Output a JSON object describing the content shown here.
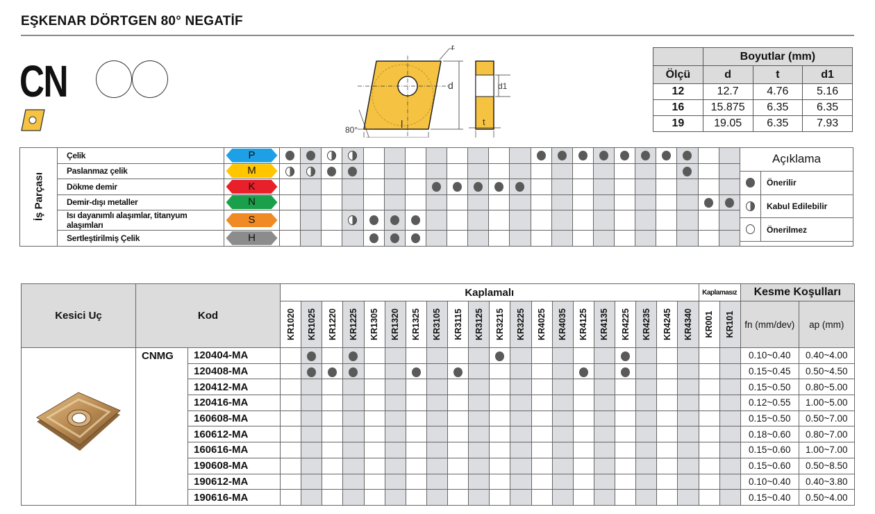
{
  "title": "EŞKENAR DÖRTGEN 80° NEGATİF",
  "shape_code": "CN",
  "diagram": {
    "r": "r",
    "d": "d",
    "d1": "d1",
    "l": "l",
    "t": "t",
    "angle": "80°"
  },
  "dimensions": {
    "group_header": "Boyutlar (mm)",
    "columns": [
      "Ölçü",
      "d",
      "t",
      "d1"
    ],
    "rows": [
      [
        "12",
        "12.7",
        "4.76",
        "5.16"
      ],
      [
        "16",
        "15.875",
        "6.35",
        "6.35"
      ],
      [
        "19",
        "19.05",
        "6.35",
        "7.93"
      ]
    ]
  },
  "workpiece": {
    "label": "İş Parçası",
    "materials": [
      {
        "name": "Çelik",
        "code": "P",
        "color": "#1ea0e6",
        "marks": [
          "full",
          "full",
          "half",
          "half",
          "",
          "",
          "",
          "",
          "",
          "",
          "",
          "",
          "full",
          "full",
          "full",
          "full",
          "full",
          "full",
          "full",
          "full",
          "",
          ""
        ]
      },
      {
        "name": "Paslanmaz çelik",
        "code": "M",
        "color": "#ffc600",
        "marks": [
          "half",
          "half",
          "full",
          "full",
          "",
          "",
          "",
          "",
          "",
          "",
          "",
          "",
          "",
          "",
          "",
          "",
          "",
          "",
          "",
          "full",
          "",
          ""
        ]
      },
      {
        "name": "Dökme demir",
        "code": "K",
        "color": "#e8202a",
        "marks": [
          "",
          "",
          "",
          "",
          "",
          "",
          "",
          "full",
          "full",
          "full",
          "full",
          "full",
          "",
          "",
          "",
          "",
          "",
          "",
          "",
          "",
          "",
          ""
        ]
      },
      {
        "name": "Demir-dışı metaller",
        "code": "N",
        "color": "#1aa04a",
        "marks": [
          "",
          "",
          "",
          "",
          "",
          "",
          "",
          "",
          "",
          "",
          "",
          "",
          "",
          "",
          "",
          "",
          "",
          "",
          "",
          "",
          "full",
          "full"
        ]
      },
      {
        "name": "Isı dayanımlı alaşımlar, titanyum alaşımları",
        "code": "S",
        "color": "#f08a24",
        "marks": [
          "",
          "",
          "",
          "half",
          "full",
          "full",
          "full",
          "",
          "",
          "",
          "",
          "",
          "",
          "",
          "",
          "",
          "",
          "",
          "",
          "",
          "",
          ""
        ]
      },
      {
        "name": "Sertleştirilmiş Çelik",
        "code": "H",
        "color": "#8c8c8c",
        "marks": [
          "",
          "",
          "",
          "",
          "full",
          "full",
          "full",
          "",
          "",
          "",
          "",
          "",
          "",
          "",
          "",
          "",
          "",
          "",
          "",
          "",
          "",
          ""
        ]
      }
    ],
    "legend": {
      "title": "Açıklama",
      "items": [
        {
          "symbol": "full",
          "label": "Önerilir"
        },
        {
          "symbol": "half",
          "label": "Kabul Edilebilir"
        },
        {
          "symbol": "empty",
          "label": "Önerilmez"
        }
      ]
    }
  },
  "inserts": {
    "col_insert": "Kesici Uç",
    "col_code": "Kod",
    "coated_header": "Kaplamalı",
    "uncoated_header": "Kaplamasız",
    "conditions_header": "Kesme Koşulları",
    "fn_header": "fn (mm/dev)",
    "ap_header": "ap (mm)",
    "grades": [
      "KR1020",
      "KR1025",
      "KR1220",
      "KR1225",
      "KR1305",
      "KR1320",
      "KR1325",
      "KR3105",
      "KR3115",
      "KR3125",
      "KR3215",
      "KR3225",
      "KR4025",
      "KR4035",
      "KR4125",
      "KR4135",
      "KR4225",
      "KR4235",
      "KR4245",
      "KR4340",
      "KR001",
      "KR101"
    ],
    "family": "CNMG",
    "rows": [
      {
        "code": "120404-MA",
        "fn": "0.10~0.40",
        "ap": "0.40~4.00",
        "available": [
          "KR1025",
          "KR1225",
          "KR3215",
          "KR4225"
        ]
      },
      {
        "code": "120408-MA",
        "fn": "0.15~0.45",
        "ap": "0.50~4.50",
        "available": [
          "KR1025",
          "KR1220",
          "KR1225",
          "KR1325",
          "KR3115",
          "KR4125",
          "KR4225"
        ]
      },
      {
        "code": "120412-MA",
        "fn": "0.15~0.50",
        "ap": "0.80~5.00",
        "available": []
      },
      {
        "code": "120416-MA",
        "fn": "0.12~0.55",
        "ap": "1.00~5.00",
        "available": []
      },
      {
        "code": "160608-MA",
        "fn": "0.15~0.50",
        "ap": "0.50~7.00",
        "available": []
      },
      {
        "code": "160612-MA",
        "fn": "0.18~0.60",
        "ap": "0.80~7.00",
        "available": []
      },
      {
        "code": "160616-MA",
        "fn": "0.15~0.60",
        "ap": "1.00~7.00",
        "available": []
      },
      {
        "code": "190608-MA",
        "fn": "0.15~0.60",
        "ap": "0.50~8.50",
        "available": []
      },
      {
        "code": "190612-MA",
        "fn": "0.10~0.40",
        "ap": "0.40~3.80",
        "available": []
      },
      {
        "code": "190616-MA",
        "fn": "0.15~0.40",
        "ap": "0.50~4.00",
        "available": []
      }
    ]
  }
}
